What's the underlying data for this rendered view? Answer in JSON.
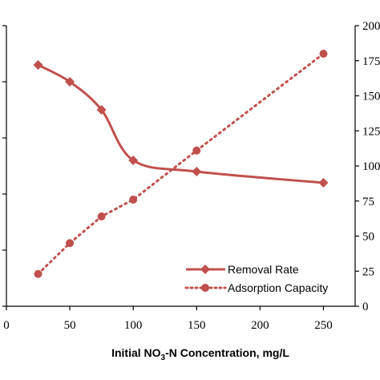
{
  "chart_data": {
    "type": "line",
    "xlabel_parts": [
      "Initial NO",
      "3",
      "-N Concentration, mg/L"
    ],
    "x_ticks": [
      "0",
      "50",
      "100",
      "150",
      "200",
      "250"
    ],
    "xlim": [
      0,
      275
    ],
    "y_left_ticks": [],
    "y_right_ticks": [
      "0",
      "25",
      "50",
      "75",
      "100",
      "125",
      "150",
      "175",
      "200"
    ],
    "y_left_lim": [
      0,
      100
    ],
    "y_right_lim": [
      0,
      200
    ],
    "grid": false,
    "legend_position": "bottom-right",
    "colors": {
      "series": "#c0504d",
      "axis": "#000000"
    },
    "series": [
      {
        "name": "Removal Rate",
        "axis": "left",
        "style": "solid",
        "marker": "diamond",
        "x": [
          25,
          50,
          75,
          100,
          150,
          250
        ],
        "y": [
          86,
          80,
          70,
          52,
          48,
          44
        ]
      },
      {
        "name": "Adsorption Capacity",
        "axis": "right",
        "style": "dotted",
        "marker": "circle",
        "x": [
          25,
          50,
          75,
          100,
          150,
          250
        ],
        "y": [
          23,
          45,
          64,
          76,
          111,
          180
        ]
      }
    ]
  }
}
